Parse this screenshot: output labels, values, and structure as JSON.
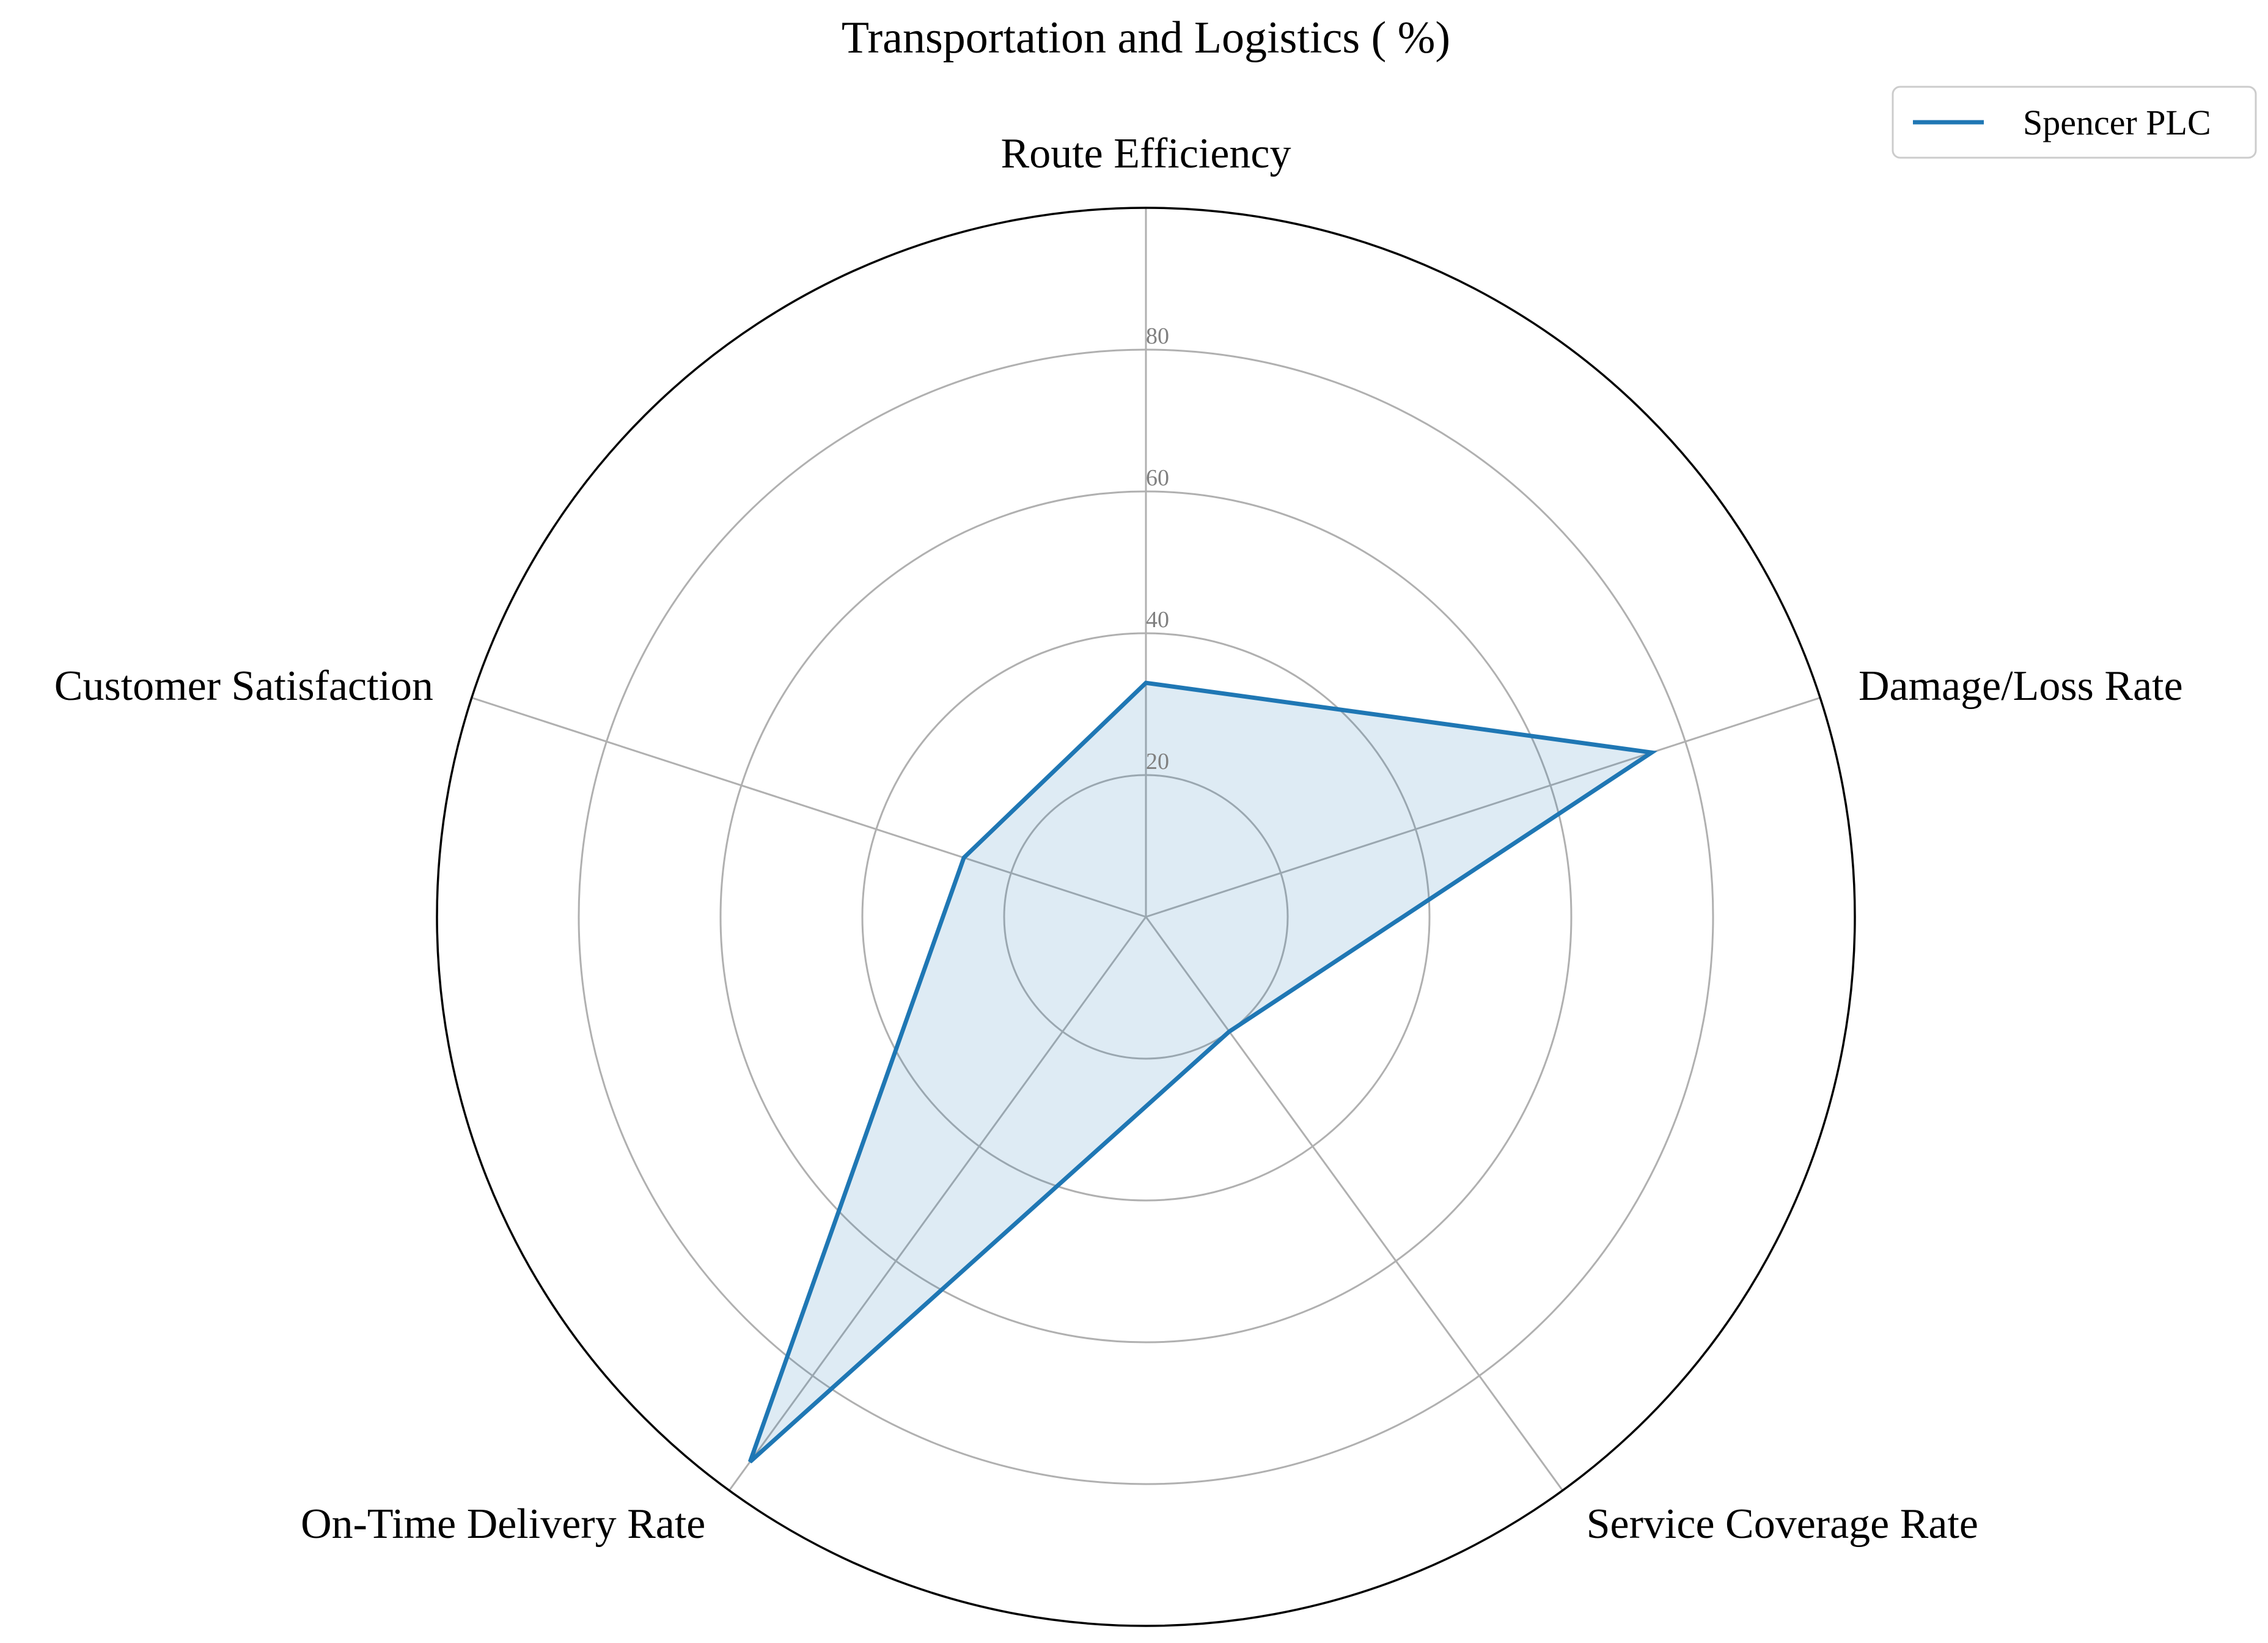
{
  "chart_data": {
    "type": "radar",
    "title": "Transportation and Logistics ( %)",
    "categories": [
      "Route Efficiency",
      "Damage/Loss Rate",
      "Service Coverage Rate",
      "On-Time Delivery Rate",
      "Customer Satisfaction"
    ],
    "series": [
      {
        "name": "Spencer PLC",
        "values": [
          33,
          75,
          20,
          95,
          27
        ],
        "color": "#1f77b4"
      }
    ],
    "rlim": [
      0,
      100
    ],
    "rticks": [
      20,
      40,
      60,
      80
    ],
    "grid": true,
    "legend": "top-right",
    "colors": {
      "line": "#1f77b4",
      "fill": "#1f77b4",
      "grid": "#b0b0b0",
      "outer_ring": "#000000",
      "tick_label": "#808080"
    }
  }
}
